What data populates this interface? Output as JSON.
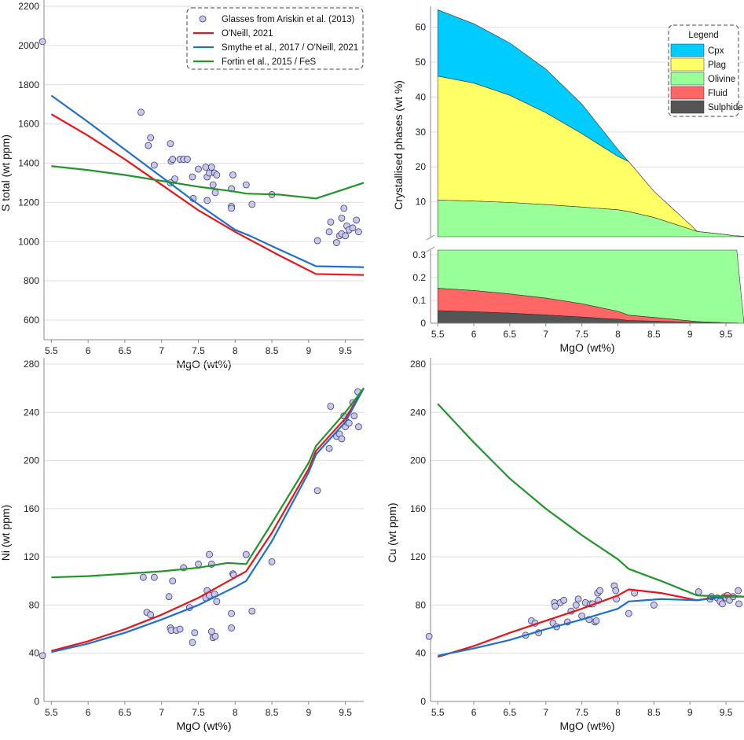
{
  "colors": {
    "glasses": "#c8c8ee",
    "oneill": "#e8141b",
    "smythe": "#1f6fcc",
    "fortin": "#21952c",
    "cpx": "#00ccff",
    "plag": "#ffff66",
    "olivine": "#99ff99",
    "fluid": "#ff6666",
    "sulphide": "#555555"
  },
  "chart_data": [
    {
      "type": "scatter",
      "xlabel": "MgO (wt%)",
      "ylabel": "S total (wt ppm)",
      "xlim": [
        5.4,
        9.75
      ],
      "ylim": [
        500,
        2200
      ],
      "xticks": [
        "5.5",
        "6",
        "6.5",
        "7",
        "7.5",
        "8",
        "8.5",
        "9",
        "9.5"
      ],
      "yticks": [
        "600",
        "800",
        "1000",
        "1200",
        "1400",
        "1600",
        "1800",
        "2000",
        "2200"
      ],
      "legend": {
        "placement": "top-right",
        "entries": [
          "Glasses from Ariskin et al. (2013)",
          "O'Neill, 2021",
          "Smythe et al., 2017 / O'Neill, 2021",
          "Fortin et al., 2015 / FeS"
        ]
      },
      "points": [
        [
          5.38,
          2020
        ],
        [
          6.72,
          1660
        ],
        [
          6.82,
          1490
        ],
        [
          6.85,
          1530
        ],
        [
          6.9,
          1390
        ],
        [
          7.12,
          1500
        ],
        [
          7.13,
          1410
        ],
        [
          7.15,
          1420
        ],
        [
          7.18,
          1320
        ],
        [
          7.12,
          1300
        ],
        [
          7.25,
          1420
        ],
        [
          7.3,
          1420
        ],
        [
          7.35,
          1420
        ],
        [
          7.42,
          1330
        ],
        [
          7.43,
          1220
        ],
        [
          7.5,
          1370
        ],
        [
          7.6,
          1380
        ],
        [
          7.62,
          1330
        ],
        [
          7.62,
          1210
        ],
        [
          7.65,
          1350
        ],
        [
          7.68,
          1380
        ],
        [
          7.7,
          1290
        ],
        [
          7.72,
          1350
        ],
        [
          7.73,
          1250
        ],
        [
          7.75,
          1340
        ],
        [
          7.95,
          1180
        ],
        [
          7.95,
          1170
        ],
        [
          7.97,
          1340
        ],
        [
          7.95,
          1270
        ],
        [
          8.15,
          1290
        ],
        [
          8.23,
          1190
        ],
        [
          8.5,
          1240
        ],
        [
          9.12,
          1005
        ],
        [
          9.28,
          1050
        ],
        [
          9.3,
          1100
        ],
        [
          9.38,
          995
        ],
        [
          9.42,
          1030
        ],
        [
          9.45,
          1040
        ],
        [
          9.45,
          1120
        ],
        [
          9.48,
          1170
        ],
        [
          9.5,
          1030
        ],
        [
          9.52,
          1080
        ],
        [
          9.55,
          1060
        ],
        [
          9.6,
          1070
        ],
        [
          9.65,
          1110
        ],
        [
          9.68,
          1050
        ]
      ],
      "series": [
        {
          "name": "O'Neill, 2021",
          "x": [
            5.5,
            6,
            6.5,
            7,
            7.5,
            8,
            8.2,
            8.6,
            9.1,
            9.75
          ],
          "y": [
            1650,
            1540,
            1420,
            1290,
            1160,
            1050,
            1010,
            930,
            835,
            830
          ]
        },
        {
          "name": "Smythe et al., 2017 / O'Neill, 2021",
          "x": [
            5.5,
            6,
            6.5,
            7,
            7.5,
            8,
            8.2,
            8.6,
            9.1,
            9.75
          ],
          "y": [
            1745,
            1610,
            1470,
            1330,
            1190,
            1060,
            1030,
            960,
            875,
            870
          ]
        },
        {
          "name": "Fortin et al., 2015 / FeS",
          "x": [
            5.5,
            6,
            6.5,
            7,
            7.5,
            8,
            8.15,
            8.6,
            9.1,
            9.75
          ],
          "y": [
            1385,
            1365,
            1340,
            1310,
            1280,
            1255,
            1245,
            1240,
            1220,
            1300
          ]
        }
      ]
    },
    {
      "type": "area",
      "xlabel": "MgO (wt%)",
      "ylabel": "Crystallised phases (wt %)",
      "xlim": [
        5.4,
        9.75
      ],
      "ylim_upper": [
        0,
        66
      ],
      "ylim_lower": [
        0,
        0.32
      ],
      "xticks": [
        "5.5",
        "6",
        "6.5",
        "7",
        "7.5",
        "8",
        "8.5",
        "9",
        "9.5"
      ],
      "yticks_upper": [
        "10",
        "20",
        "30",
        "40",
        "50",
        "60"
      ],
      "yticks_lower": [
        "0",
        "0.1",
        "0.2",
        "0.3"
      ],
      "legend": {
        "title": "Legend",
        "placement": "top-right",
        "entries": [
          "Cpx",
          "Plag",
          "Olivine",
          "Fluid",
          "Sulphide"
        ]
      },
      "x": [
        5.5,
        6,
        6.5,
        7,
        7.5,
        8,
        8.15,
        8.5,
        9,
        9.1,
        9.5,
        9.6,
        9.75
      ],
      "stacked_upper": {
        "olivine_top": [
          10.5,
          10.2,
          9.8,
          9.2,
          8.5,
          7.7,
          7.2,
          5.5,
          2.2,
          1.5,
          0.6,
          0.3,
          0.1
        ],
        "plag_top": [
          46,
          44,
          40.5,
          35.5,
          29.5,
          23,
          21.5,
          13,
          3.5,
          1.5,
          0.6,
          0.3,
          0.1
        ],
        "cpx_top": [
          65,
          61,
          55.5,
          48,
          38,
          25,
          21.5,
          13,
          3.5,
          1.5,
          0.6,
          0.3,
          0.1
        ]
      },
      "lower": {
        "x": [
          5.5,
          6,
          6.5,
          7,
          7.5,
          8,
          8.15,
          8.5,
          9,
          9.1,
          9.5,
          9.65,
          9.75
        ],
        "sulphide_top": [
          0.055,
          0.05,
          0.044,
          0.036,
          0.027,
          0.017,
          0.012,
          0.009,
          0.004,
          0.003,
          0.001,
          0.0005,
          0
        ],
        "fluid_top": [
          0.153,
          0.143,
          0.128,
          0.11,
          0.085,
          0.052,
          0.035,
          0.025,
          0.01,
          0.007,
          0.002,
          0.001,
          0
        ],
        "olivine_top": [
          0.32,
          0.32,
          0.32,
          0.32,
          0.32,
          0.32,
          0.32,
          0.32,
          0.32,
          0.32,
          0.32,
          0.32,
          0
        ]
      }
    },
    {
      "type": "scatter",
      "xlabel": "MgO (wt%)",
      "ylabel": "Ni (wt ppm)",
      "xlim": [
        5.4,
        9.75
      ],
      "ylim": [
        0,
        280
      ],
      "xticks": [
        "5.5",
        "6",
        "6.5",
        "7",
        "7.5",
        "8",
        "8.5",
        "9",
        "9.5"
      ],
      "yticks": [
        "0",
        "40",
        "80",
        "120",
        "160",
        "200",
        "240",
        "280"
      ],
      "points": [
        [
          5.38,
          38
        ],
        [
          6.75,
          103
        ],
        [
          6.8,
          74
        ],
        [
          6.85,
          72
        ],
        [
          6.9,
          103
        ],
        [
          7.1,
          87
        ],
        [
          7.12,
          61
        ],
        [
          7.13,
          59
        ],
        [
          7.15,
          100
        ],
        [
          7.2,
          59
        ],
        [
          7.25,
          60
        ],
        [
          7.3,
          111
        ],
        [
          7.38,
          78
        ],
        [
          7.42,
          49
        ],
        [
          7.45,
          57
        ],
        [
          7.5,
          114
        ],
        [
          7.6,
          86
        ],
        [
          7.62,
          92
        ],
        [
          7.65,
          122
        ],
        [
          7.65,
          88
        ],
        [
          7.68,
          114
        ],
        [
          7.68,
          58
        ],
        [
          7.7,
          53
        ],
        [
          7.72,
          89
        ],
        [
          7.73,
          54
        ],
        [
          7.75,
          83
        ],
        [
          7.95,
          61
        ],
        [
          7.95,
          73
        ],
        [
          7.97,
          106
        ],
        [
          7.98,
          105
        ],
        [
          8.15,
          122
        ],
        [
          8.23,
          75
        ],
        [
          8.5,
          116
        ],
        [
          9.12,
          175
        ],
        [
          9.28,
          210
        ],
        [
          9.3,
          245
        ],
        [
          9.38,
          220
        ],
        [
          9.42,
          222
        ],
        [
          9.45,
          218
        ],
        [
          9.48,
          237
        ],
        [
          9.5,
          228
        ],
        [
          9.52,
          232
        ],
        [
          9.55,
          231
        ],
        [
          9.6,
          248
        ],
        [
          9.62,
          237
        ],
        [
          9.67,
          257
        ],
        [
          9.68,
          228
        ]
      ],
      "series": [
        {
          "name": "O'Neill, 2021",
          "x": [
            5.5,
            6,
            6.5,
            7,
            7.5,
            8,
            8.15,
            8.5,
            9,
            9.1,
            9.5,
            9.75
          ],
          "y": [
            42,
            50,
            60,
            72,
            86,
            103,
            108,
            140,
            193,
            208,
            235,
            260
          ]
        },
        {
          "name": "Smythe et al., 2017 / O'Neill, 2021",
          "x": [
            5.5,
            6,
            6.5,
            7,
            7.5,
            8,
            8.15,
            8.5,
            9,
            9.1,
            9.5,
            9.75
          ],
          "y": [
            41,
            48,
            57,
            68,
            80,
            95,
            100,
            133,
            190,
            205,
            232,
            260
          ]
        },
        {
          "name": "Fortin et al., 2015 / FeS",
          "x": [
            5.5,
            6,
            6.5,
            7,
            7.5,
            7.9,
            8.15,
            8.5,
            9,
            9.1,
            9.5,
            9.75
          ],
          "y": [
            103,
            104,
            106,
            108,
            111,
            115,
            114,
            148,
            198,
            212,
            240,
            260
          ]
        }
      ]
    },
    {
      "type": "scatter",
      "xlabel": "MgO (wt%)",
      "ylabel": "Cu (wt ppm)",
      "xlim": [
        5.4,
        9.75
      ],
      "ylim": [
        0,
        280
      ],
      "xticks": [
        "5.5",
        "6",
        "6.5",
        "7",
        "7.5",
        "8",
        "8.5",
        "9",
        "9.5"
      ],
      "yticks": [
        "0",
        "40",
        "80",
        "120",
        "160",
        "200",
        "240",
        "280"
      ],
      "points": [
        [
          5.38,
          54
        ],
        [
          6.72,
          55
        ],
        [
          6.8,
          67
        ],
        [
          6.85,
          65
        ],
        [
          6.9,
          57
        ],
        [
          7.1,
          65
        ],
        [
          7.12,
          82
        ],
        [
          7.13,
          79
        ],
        [
          7.15,
          62
        ],
        [
          7.2,
          82
        ],
        [
          7.25,
          84
        ],
        [
          7.3,
          66
        ],
        [
          7.35,
          75
        ],
        [
          7.42,
          80
        ],
        [
          7.45,
          85
        ],
        [
          7.5,
          71
        ],
        [
          7.55,
          82
        ],
        [
          7.6,
          68
        ],
        [
          7.62,
          81
        ],
        [
          7.65,
          81
        ],
        [
          7.68,
          66
        ],
        [
          7.7,
          67
        ],
        [
          7.72,
          90
        ],
        [
          7.73,
          84
        ],
        [
          7.75,
          92
        ],
        [
          7.95,
          96
        ],
        [
          7.97,
          92
        ],
        [
          7.98,
          85
        ],
        [
          8.15,
          73
        ],
        [
          8.23,
          90
        ],
        [
          8.5,
          80
        ],
        [
          9.12,
          91
        ],
        [
          9.28,
          85
        ],
        [
          9.3,
          87
        ],
        [
          9.38,
          86
        ],
        [
          9.42,
          83
        ],
        [
          9.45,
          81
        ],
        [
          9.48,
          87
        ],
        [
          9.5,
          86
        ],
        [
          9.52,
          88
        ],
        [
          9.55,
          84
        ],
        [
          9.6,
          87
        ],
        [
          9.67,
          92
        ],
        [
          9.68,
          81
        ]
      ],
      "series": [
        {
          "name": "O'Neill, 2021",
          "x": [
            5.5,
            6,
            6.5,
            7,
            7.5,
            8,
            8.15,
            8.6,
            9.1,
            9.5,
            9.75
          ],
          "y": [
            37,
            46,
            57,
            67,
            77,
            88,
            93,
            90,
            84,
            88,
            87
          ]
        },
        {
          "name": "Smythe et al., 2017 / O'Neill, 2021",
          "x": [
            5.5,
            6,
            6.5,
            7,
            7.5,
            8,
            8.15,
            8.6,
            9.1,
            9.5,
            9.75
          ],
          "y": [
            38,
            44,
            51,
            60,
            68,
            77,
            83,
            85,
            84,
            87,
            87
          ]
        },
        {
          "name": "Fortin et al., 2015 / FeS",
          "x": [
            5.5,
            6,
            6.5,
            7,
            7.5,
            8,
            8.15,
            8.6,
            9.1,
            9.5,
            9.75
          ],
          "y": [
            247,
            215,
            185,
            160,
            138,
            118,
            110,
            100,
            88,
            87,
            87
          ]
        }
      ]
    }
  ]
}
